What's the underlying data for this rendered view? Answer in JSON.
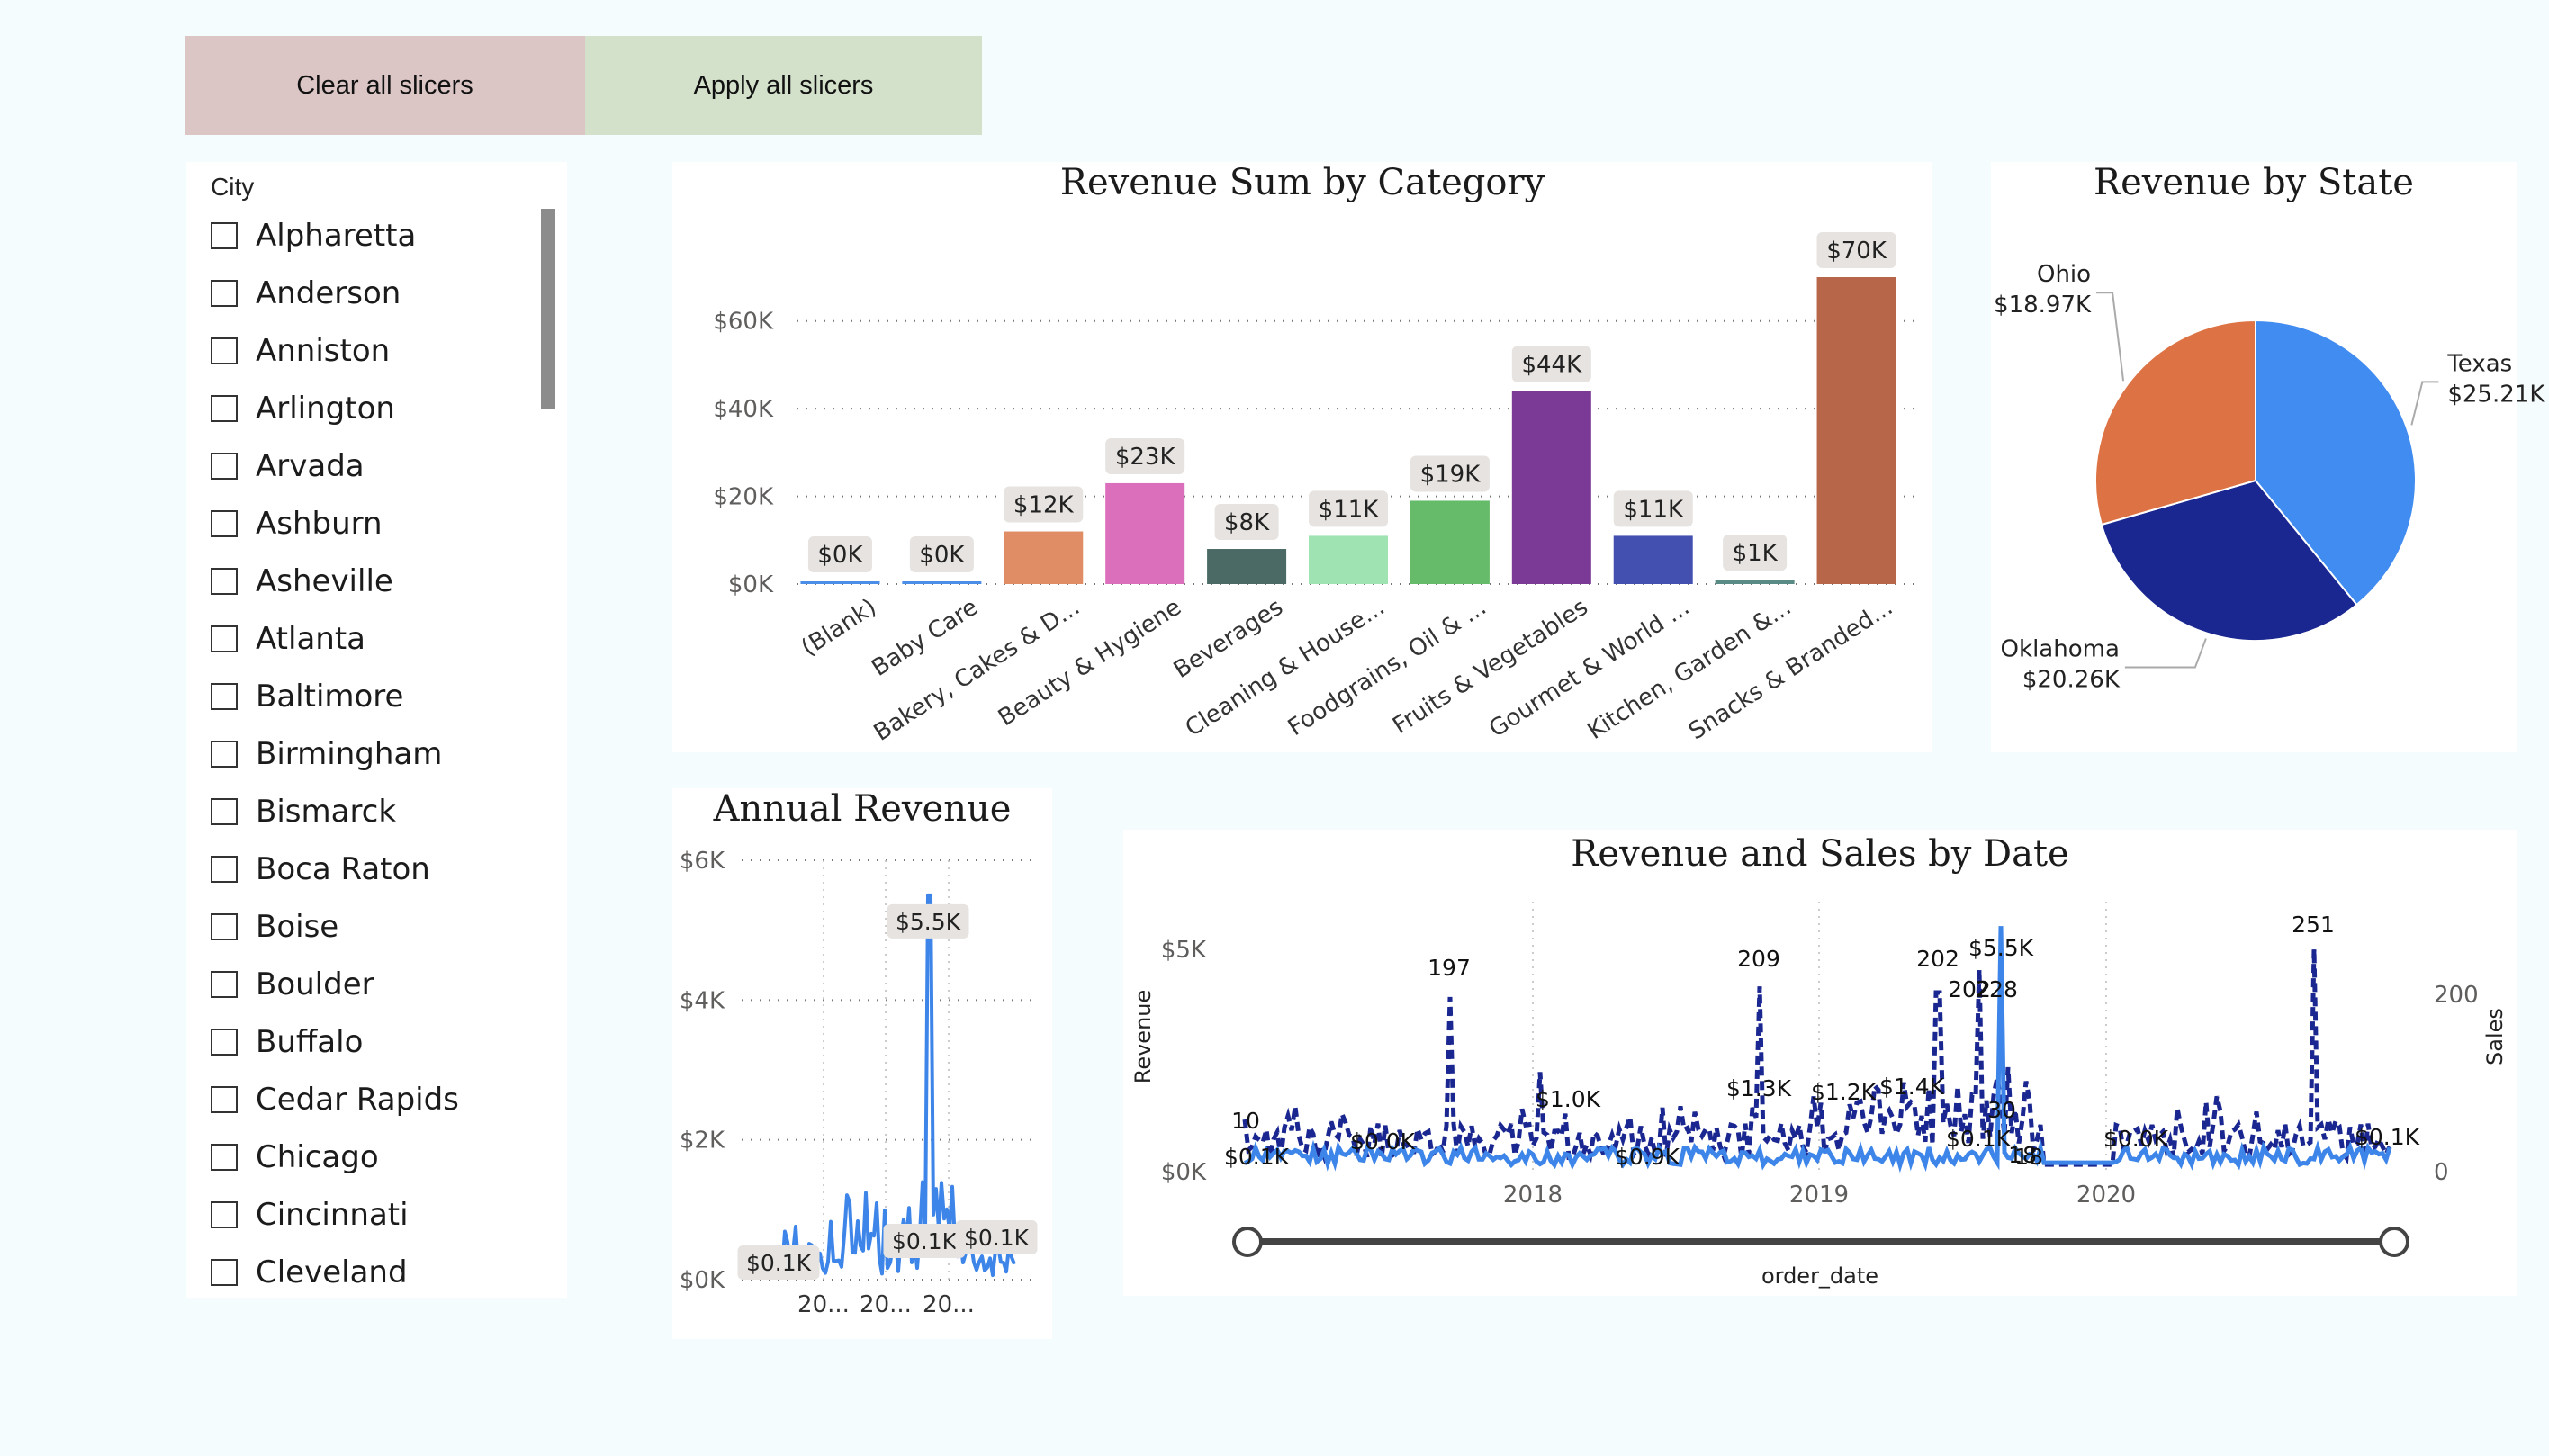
{
  "buttons": {
    "clear_label": "Clear all slicers",
    "apply_label": "Apply all slicers",
    "clear_color": "#dbc5c5",
    "apply_color": "#d3e1cb"
  },
  "slicer": {
    "title": "City",
    "items": [
      "Alpharetta",
      "Anderson",
      "Anniston",
      "Arlington",
      "Arvada",
      "Ashburn",
      "Asheville",
      "Atlanta",
      "Baltimore",
      "Birmingham",
      "Bismarck",
      "Boca Raton",
      "Boise",
      "Boulder",
      "Buffalo",
      "Cedar Rapids",
      "Chicago",
      "Cincinnati",
      "Cleveland"
    ]
  },
  "charts": {
    "category": {
      "title": "Revenue Sum by Category",
      "chart_data": {
        "type": "bar",
        "categories": [
          "(Blank)",
          "Baby Care",
          "Bakery, Cakes & D...",
          "Beauty & Hygiene",
          "Beverages",
          "Cleaning & House...",
          "Foodgrains, Oil & ...",
          "Fruits & Vegetables",
          "Gourmet & World ...",
          "Kitchen, Garden &...",
          "Snacks & Branded..."
        ],
        "values": [
          0.3,
          0.3,
          12,
          23,
          8,
          11,
          19,
          44,
          11,
          1,
          70
        ],
        "data_labels": [
          "$0K",
          "$0K",
          "$12K",
          "$23K",
          "$8K",
          "$11K",
          "$19K",
          "$44K",
          "$11K",
          "$1K",
          "$70K"
        ],
        "colors": [
          "#4a8ee8",
          "#4a8ee8",
          "#e08d65",
          "#dc6fbb",
          "#4b6a65",
          "#9ee3b1",
          "#66bb6a",
          "#7b3a96",
          "#4450b0",
          "#5a8a84",
          "#b8664a"
        ],
        "yticks": [
          "$0K",
          "$20K",
          "$40K",
          "$60K"
        ],
        "ylim": [
          0,
          70
        ]
      }
    },
    "state": {
      "title": "Revenue by State",
      "chart_data": {
        "type": "pie",
        "labels": [
          "Texas",
          "Oklahoma",
          "Ohio"
        ],
        "values": [
          25.21,
          20.26,
          18.97
        ],
        "value_labels": [
          "$25.21K",
          "$20.26K",
          "$18.97K"
        ],
        "colors": [
          "#418cf0",
          "#1a2790",
          "#dd7344"
        ]
      }
    },
    "annual": {
      "title": "Annual Revenue",
      "chart_data": {
        "type": "line",
        "yticks": [
          "$0K",
          "$2K",
          "$4K",
          "$6K"
        ],
        "xticks": [
          "20...",
          "20...",
          "20..."
        ],
        "ylim": [
          0,
          6
        ],
        "peak": 5.5,
        "data_labels": [
          "$5.5K",
          "$0.1K",
          "$0.1K",
          "$0.1K"
        ],
        "color": "#3d85e8"
      }
    },
    "date": {
      "title": "Revenue and Sales by Date",
      "xlabel": "order_date",
      "ylabel_left": "Revenue",
      "ylabel_right": "Sales",
      "chart_data": {
        "type": "line",
        "xticks": [
          "2018",
          "2019",
          "2020"
        ],
        "yticks_left": [
          "$0K",
          "$5K"
        ],
        "yticks_right": [
          "0",
          "200"
        ],
        "series": [
          {
            "name": "Revenue",
            "color": "#3d85e8"
          },
          {
            "name": "Sales",
            "color": "#1a2790"
          }
        ],
        "annotations": [
          "197",
          "209",
          "202",
          "251",
          "$5.5K",
          "202",
          "228",
          "18",
          "10",
          "$0.1K",
          "$0.0K",
          "$1.0K",
          "$0.9K",
          "$1.3K",
          "$1.2K",
          "$1.4K",
          "$0.1K",
          "30",
          "$0.0K",
          "$0.1K",
          "18"
        ]
      }
    }
  }
}
